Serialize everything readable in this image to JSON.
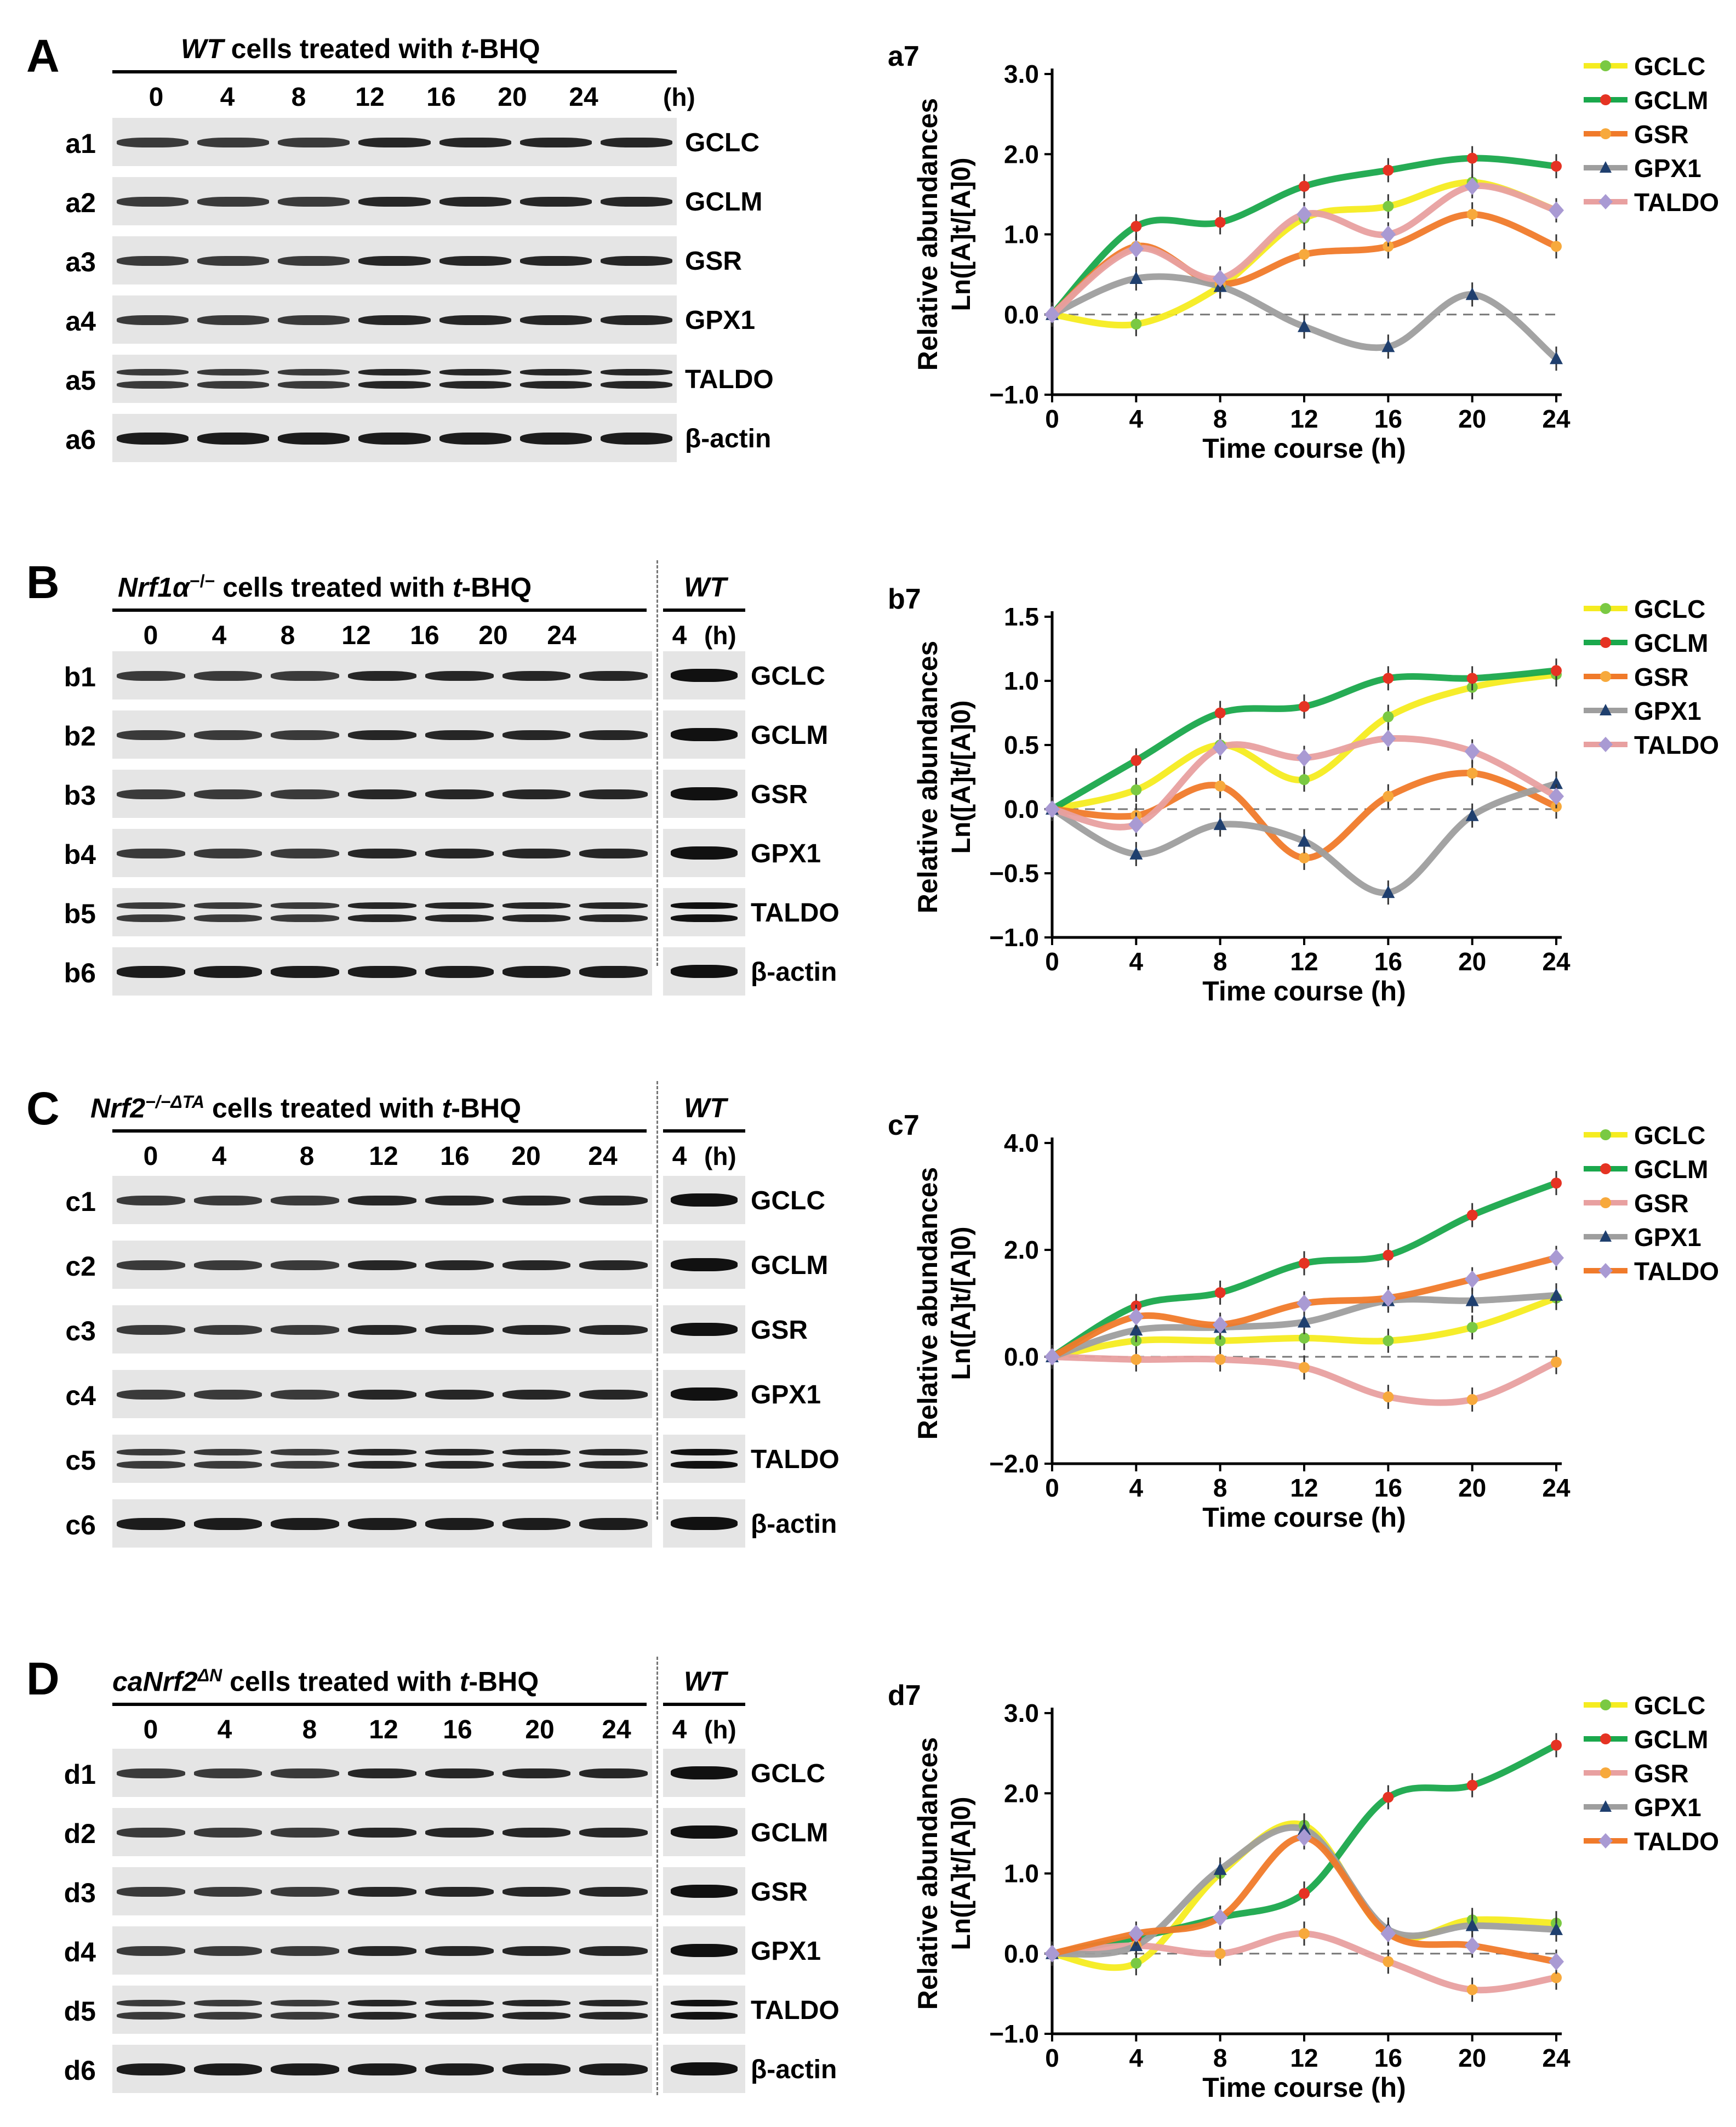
{
  "timepoints": [
    "0",
    "4",
    "8",
    "12",
    "16",
    "20",
    "24"
  ],
  "time_unit": "(h)",
  "wt_label": "WT",
  "wt_timepoint": "4",
  "panels": [
    {
      "letter": "A",
      "genotype": "WT",
      "genotype_sup": "",
      "header_rest": " cells treated with ",
      "treatment_italic": "t",
      "treatment_rest": "-BHQ",
      "has_wt": false,
      "rows": [
        {
          "label": "a1",
          "protein": "GCLC"
        },
        {
          "label": "a2",
          "protein": "GCLM"
        },
        {
          "label": "a3",
          "protein": "GSR"
        },
        {
          "label": "a4",
          "protein": "GPX1"
        },
        {
          "label": "a5",
          "protein": "TALDO"
        },
        {
          "label": "a6",
          "protein": "β-actin"
        }
      ]
    },
    {
      "letter": "B",
      "genotype": "Nrf1α",
      "genotype_sup": "−/−",
      "header_rest": " cells treated with ",
      "treatment_italic": "t",
      "treatment_rest": "-BHQ",
      "has_wt": true,
      "rows": [
        {
          "label": "b1",
          "protein": "GCLC"
        },
        {
          "label": "b2",
          "protein": "GCLM"
        },
        {
          "label": "b3",
          "protein": "GSR"
        },
        {
          "label": "b4",
          "protein": "GPX1"
        },
        {
          "label": "b5",
          "protein": "TALDO"
        },
        {
          "label": "b6",
          "protein": "β-actin"
        }
      ]
    },
    {
      "letter": "C",
      "genotype": "Nrf2",
      "genotype_sup": "−/−ΔTA",
      "header_rest": " cells treated with ",
      "treatment_italic": "t",
      "treatment_rest": "-BHQ",
      "has_wt": true,
      "rows": [
        {
          "label": "c1",
          "protein": "GCLC"
        },
        {
          "label": "c2",
          "protein": "GCLM"
        },
        {
          "label": "c3",
          "protein": "GSR"
        },
        {
          "label": "c4",
          "protein": "GPX1"
        },
        {
          "label": "c5",
          "protein": "TALDO"
        },
        {
          "label": "c6",
          "protein": "β-actin"
        }
      ]
    },
    {
      "letter": "D",
      "genotype": "caNrf2",
      "genotype_sup": "ΔN",
      "header_rest": " cells treated with ",
      "treatment_italic": "t",
      "treatment_rest": "-BHQ",
      "has_wt": true,
      "rows": [
        {
          "label": "d1",
          "protein": "GCLC"
        },
        {
          "label": "d2",
          "protein": "GCLM"
        },
        {
          "label": "d3",
          "protein": "GSR"
        },
        {
          "label": "d4",
          "protein": "GPX1"
        },
        {
          "label": "d5",
          "protein": "TALDO"
        },
        {
          "label": "d6",
          "protein": "β-actin"
        }
      ]
    }
  ],
  "chart_data": [
    {
      "type": "line",
      "panel": "a7",
      "xlabel": "Time course (h)",
      "ylabel": "Relative abundances",
      "ylabel2": "Ln([A]t/[A]0)",
      "x": [
        0,
        4,
        8,
        12,
        16,
        20,
        24
      ],
      "ylim": [
        -1.0,
        3.0
      ],
      "yticks": [
        -1.0,
        0.0,
        1.0,
        2.0,
        3.0
      ],
      "ytick_labels": [
        "−1.0",
        "0.0",
        "1.0",
        "2.0",
        "3.0"
      ],
      "baseline": 0,
      "baseline_dashed": true,
      "grid": false,
      "legend_position": "top-right",
      "series": [
        {
          "name": "GCLC",
          "color": "#f5ec20",
          "marker": "circle",
          "marker_color": "#7ac943",
          "values": [
            0,
            -0.12,
            0.35,
            1.2,
            1.35,
            1.65,
            1.3
          ]
        },
        {
          "name": "GCLM",
          "color": "#1aa84c",
          "marker": "circle",
          "marker_color": "#e53323",
          "values": [
            0,
            1.1,
            1.15,
            1.6,
            1.8,
            1.95,
            1.85
          ]
        },
        {
          "name": "GSR",
          "color": "#f07a2a",
          "marker": "circle",
          "marker_color": "#f7a93c",
          "values": [
            0,
            0.85,
            0.38,
            0.75,
            0.85,
            1.25,
            0.85
          ]
        },
        {
          "name": "GPX1",
          "color": "#9e9e9e",
          "marker": "triangle",
          "marker_color": "#1f3f6e",
          "values": [
            0,
            0.45,
            0.35,
            -0.15,
            -0.4,
            0.25,
            -0.55
          ]
        },
        {
          "name": "TALDO",
          "color": "#e8a0a0",
          "marker": "diamond",
          "marker_color": "#a99ad3",
          "values": [
            0,
            0.82,
            0.45,
            1.25,
            1.0,
            1.6,
            1.3
          ]
        }
      ]
    },
    {
      "type": "line",
      "panel": "b7",
      "xlabel": "Time course (h)",
      "ylabel": "Relative abundances",
      "ylabel2": "Ln([A]t/[A]0)",
      "x": [
        0,
        4,
        8,
        12,
        16,
        20,
        24
      ],
      "ylim": [
        -1.0,
        1.5
      ],
      "yticks": [
        -1.0,
        -0.5,
        0.0,
        0.5,
        1.0,
        1.5
      ],
      "ytick_labels": [
        "−1.0",
        "−0.5",
        "0.0",
        "0.5",
        "1.0",
        "1.5"
      ],
      "baseline": 0,
      "baseline_dashed": true,
      "grid": false,
      "legend_position": "top-right",
      "series": [
        {
          "name": "GCLC",
          "color": "#f5ec20",
          "marker": "circle",
          "marker_color": "#7ac943",
          "values": [
            0,
            0.15,
            0.5,
            0.23,
            0.72,
            0.95,
            1.05
          ]
        },
        {
          "name": "GCLM",
          "color": "#1aa84c",
          "marker": "circle",
          "marker_color": "#e53323",
          "values": [
            0,
            0.38,
            0.75,
            0.8,
            1.02,
            1.02,
            1.08
          ]
        },
        {
          "name": "GSR",
          "color": "#f07a2a",
          "marker": "circle",
          "marker_color": "#f7a93c",
          "values": [
            0,
            -0.05,
            0.18,
            -0.38,
            0.1,
            0.28,
            0.02
          ]
        },
        {
          "name": "GPX1",
          "color": "#9e9e9e",
          "marker": "triangle",
          "marker_color": "#1f3f6e",
          "values": [
            0,
            -0.35,
            -0.12,
            -0.25,
            -0.65,
            -0.05,
            0.2
          ]
        },
        {
          "name": "TALDO",
          "color": "#e8a0a0",
          "marker": "diamond",
          "marker_color": "#a99ad3",
          "values": [
            0,
            -0.12,
            0.48,
            0.4,
            0.55,
            0.45,
            0.1
          ]
        }
      ]
    },
    {
      "type": "line",
      "panel": "c7",
      "xlabel": "Time course (h)",
      "ylabel": "Relative abundances",
      "ylabel2": "Ln([A]t/[A]0)",
      "x": [
        0,
        4,
        8,
        12,
        16,
        20,
        24
      ],
      "ylim": [
        -2.0,
        4.0
      ],
      "yticks": [
        -2.0,
        0.0,
        2.0,
        4.0
      ],
      "ytick_labels": [
        "−2.0",
        "0.0",
        "2.0",
        "4.0"
      ],
      "baseline": 0,
      "baseline_dashed": true,
      "grid": false,
      "legend_position": "top-right",
      "series": [
        {
          "name": "GCLC",
          "color": "#f5ec20",
          "marker": "circle",
          "marker_color": "#7ac943",
          "values": [
            0,
            0.3,
            0.3,
            0.35,
            0.3,
            0.55,
            1.1
          ]
        },
        {
          "name": "GCLM",
          "color": "#1aa84c",
          "marker": "circle",
          "marker_color": "#e53323",
          "values": [
            0,
            0.95,
            1.2,
            1.75,
            1.9,
            2.65,
            3.25
          ]
        },
        {
          "name": "GSR",
          "color": "#e8a0a0",
          "marker": "circle",
          "marker_color": "#f7a93c",
          "values": [
            0,
            -0.05,
            -0.05,
            -0.2,
            -0.75,
            -0.8,
            -0.1
          ]
        },
        {
          "name": "GPX1",
          "color": "#9e9e9e",
          "marker": "triangle",
          "marker_color": "#1f3f6e",
          "values": [
            0,
            0.5,
            0.55,
            0.65,
            1.05,
            1.05,
            1.15
          ]
        },
        {
          "name": "TALDO",
          "color": "#f07a2a",
          "marker": "diamond",
          "marker_color": "#a99ad3",
          "values": [
            0,
            0.75,
            0.6,
            1.0,
            1.1,
            1.45,
            1.85
          ]
        }
      ]
    },
    {
      "type": "line",
      "panel": "d7",
      "xlabel": "Time course (h)",
      "ylabel": "Relative abundances",
      "ylabel2": "Ln([A]t/[A]0)",
      "x": [
        0,
        4,
        8,
        12,
        16,
        20,
        24
      ],
      "ylim": [
        -1.0,
        3.0
      ],
      "yticks": [
        -1.0,
        0.0,
        1.0,
        2.0,
        3.0
      ],
      "ytick_labels": [
        "−1.0",
        "0.0",
        "1.0",
        "2.0",
        "3.0"
      ],
      "baseline": 0,
      "baseline_dashed": true,
      "grid": false,
      "legend_position": "top-right",
      "series": [
        {
          "name": "GCLC",
          "color": "#f5ec20",
          "marker": "circle",
          "marker_color": "#7ac943",
          "values": [
            0,
            -0.12,
            1.0,
            1.6,
            0.25,
            0.42,
            0.38
          ]
        },
        {
          "name": "GCLM",
          "color": "#1aa84c",
          "marker": "circle",
          "marker_color": "#e53323",
          "values": [
            0,
            0.2,
            0.45,
            0.75,
            1.95,
            2.1,
            2.6
          ]
        },
        {
          "name": "GSR",
          "color": "#e8a0a0",
          "marker": "circle",
          "marker_color": "#f7a93c",
          "values": [
            0,
            0.1,
            0.0,
            0.25,
            -0.1,
            -0.45,
            -0.3
          ]
        },
        {
          "name": "GPX1",
          "color": "#9e9e9e",
          "marker": "triangle",
          "marker_color": "#1f3f6e",
          "values": [
            0,
            0.1,
            1.05,
            1.55,
            0.3,
            0.35,
            0.3
          ]
        },
        {
          "name": "TALDO",
          "color": "#f07a2a",
          "marker": "diamond",
          "marker_color": "#a99ad3",
          "values": [
            0,
            0.25,
            0.45,
            1.45,
            0.25,
            0.1,
            -0.1
          ]
        }
      ]
    }
  ]
}
